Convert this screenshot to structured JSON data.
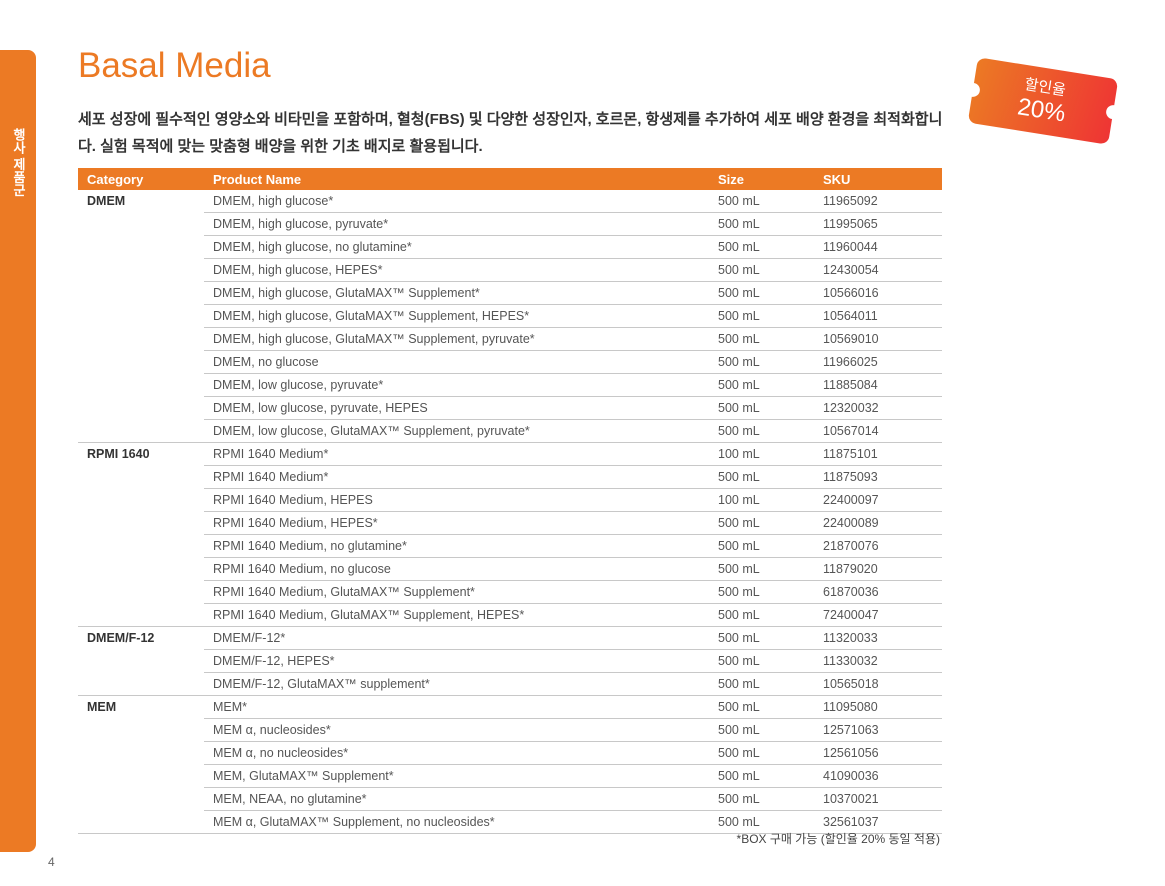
{
  "side_tab": "행사 제품군",
  "title": "Basal Media",
  "description": "세포 성장에 필수적인 영양소와 비타민을 포함하며, 혈청(FBS) 및 다양한 성장인자, 호르몬, 항생제를 추가하여 세포 배양 환경을 최적화합니다. 실험 목적에 맞는 맞춤형 배양을 위한 기초 배지로 활용됩니다.",
  "badge": {
    "label": "할인율",
    "value": "20%"
  },
  "colors": {
    "accent": "#ec7a24",
    "badge_end": "#ee3434"
  },
  "table": {
    "headers": [
      "Category",
      "Product Name",
      "Size",
      "SKU"
    ],
    "groups": [
      {
        "category": "DMEM",
        "rows": [
          [
            "DMEM, high glucose*",
            "500 mL",
            "11965092"
          ],
          [
            "DMEM, high glucose, pyruvate*",
            "500 mL",
            "11995065"
          ],
          [
            "DMEM, high glucose, no glutamine*",
            "500 mL",
            "11960044"
          ],
          [
            "DMEM, high glucose, HEPES*",
            "500 mL",
            "12430054"
          ],
          [
            "DMEM, high glucose, GlutaMAX™ Supplement*",
            "500 mL",
            "10566016"
          ],
          [
            "DMEM, high glucose, GlutaMAX™ Supplement, HEPES*",
            "500 mL",
            "10564011"
          ],
          [
            "DMEM, high glucose, GlutaMAX™ Supplement, pyruvate*",
            "500 mL",
            "10569010"
          ],
          [
            "DMEM, no glucose",
            "500 mL",
            "11966025"
          ],
          [
            "DMEM, low glucose, pyruvate*",
            "500 mL",
            "11885084"
          ],
          [
            "DMEM, low glucose, pyruvate, HEPES",
            "500 mL",
            "12320032"
          ],
          [
            "DMEM, low glucose, GlutaMAX™ Supplement, pyruvate*",
            "500 mL",
            "10567014"
          ]
        ]
      },
      {
        "category": "RPMI 1640",
        "rows": [
          [
            "RPMI 1640 Medium*",
            "100 mL",
            "11875101"
          ],
          [
            "RPMI 1640 Medium*",
            "500 mL",
            "11875093"
          ],
          [
            "RPMI 1640 Medium, HEPES",
            "100 mL",
            "22400097"
          ],
          [
            "RPMI 1640 Medium, HEPES*",
            "500 mL",
            "22400089"
          ],
          [
            "RPMI 1640 Medium, no glutamine*",
            "500 mL",
            "21870076"
          ],
          [
            "RPMI 1640 Medium, no glucose",
            "500 mL",
            "11879020"
          ],
          [
            "RPMI 1640 Medium, GlutaMAX™ Supplement*",
            "500 mL",
            "61870036"
          ],
          [
            "RPMI 1640 Medium, GlutaMAX™ Supplement, HEPES*",
            "500 mL",
            "72400047"
          ]
        ]
      },
      {
        "category": "DMEM/F-12",
        "rows": [
          [
            "DMEM/F-12*",
            "500 mL",
            "11320033"
          ],
          [
            "DMEM/F-12, HEPES*",
            "500 mL",
            "11330032"
          ],
          [
            "DMEM/F-12, GlutaMAX™ supplement*",
            "500 mL",
            "10565018"
          ]
        ]
      },
      {
        "category": "MEM",
        "rows": [
          [
            "MEM*",
            "500 mL",
            "11095080"
          ],
          [
            "MEM α, nucleosides*",
            "500 mL",
            "12571063"
          ],
          [
            "MEM α, no nucleosides*",
            "500 mL",
            "12561056"
          ],
          [
            "MEM, GlutaMAX™ Supplement*",
            "500 mL",
            "41090036"
          ],
          [
            "MEM, NEAA, no glutamine*",
            "500 mL",
            "10370021"
          ],
          [
            "MEM α, GlutaMAX™ Supplement, no nucleosides*",
            "500 mL",
            "32561037"
          ]
        ]
      }
    ]
  },
  "footnote": "*BOX 구매 가능 (할인율 20% 동일 적용)",
  "page_number": "4"
}
